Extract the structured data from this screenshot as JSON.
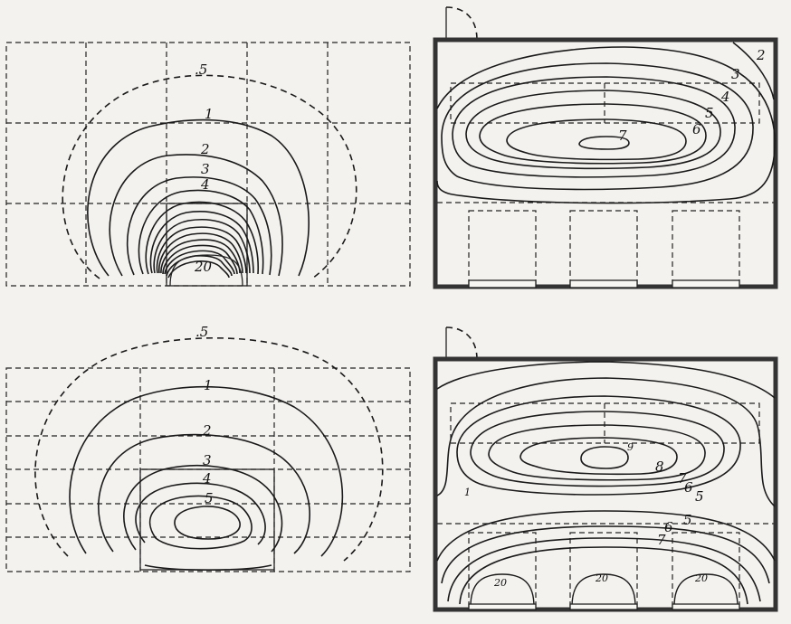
{
  "panels": {
    "top_left": {
      "labels": [
        ".5",
        "1",
        "2",
        "3",
        "4",
        "20"
      ]
    },
    "top_right": {
      "labels": [
        "2",
        "3",
        "4",
        "5",
        "6",
        "7"
      ]
    },
    "bottom_left": {
      "labels": [
        ".5",
        "1",
        "2",
        "3",
        "4",
        "5"
      ]
    },
    "bottom_right": {
      "labels": [
        "9",
        "8",
        "7",
        "6",
        "5",
        "1",
        "5",
        "6",
        "7",
        "20",
        "20",
        "20"
      ]
    }
  }
}
